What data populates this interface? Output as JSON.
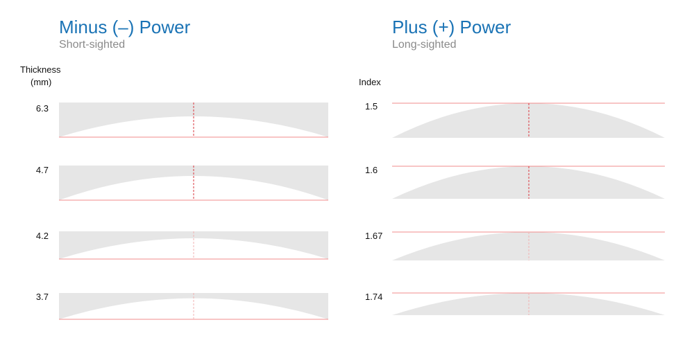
{
  "colors": {
    "title": "#1a73b5",
    "subtitle": "#8a8a8a",
    "lens_fill": "#e6e6e6",
    "reference_line": "#f28b8b",
    "center_line_strong": "#d9363e",
    "center_line_faint": "#f2b3b3"
  },
  "minus_panel": {
    "title": "Minus (–) Power",
    "subtitle": "Short-sighted",
    "axis_label_line1": "Thickness",
    "axis_label_line2": "(mm)",
    "rows": [
      {
        "value": "6.3",
        "center_fraction": 0.4
      },
      {
        "value": "4.7",
        "center_fraction": 0.3
      },
      {
        "value": "4.2",
        "center_fraction": 0.25
      },
      {
        "value": "3.7",
        "center_fraction": 0.2
      }
    ]
  },
  "plus_panel": {
    "title": "Plus (+) Power",
    "subtitle": "Long-sighted",
    "axis_label": "Index",
    "rows": [
      {
        "value": "1.5"
      },
      {
        "value": "1.6"
      },
      {
        "value": "1.67"
      },
      {
        "value": "1.74"
      }
    ]
  }
}
